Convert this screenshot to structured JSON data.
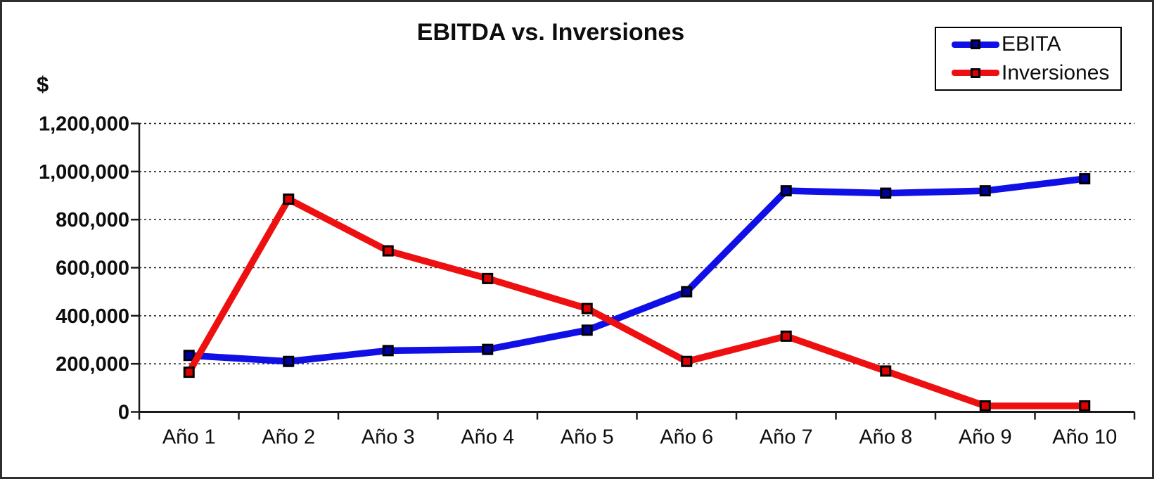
{
  "chart": {
    "title": "EBITDA vs. Inversiones",
    "y_axis_unit": "$"
  },
  "chart_data": {
    "type": "line",
    "title": "EBITDA vs. Inversiones",
    "ylabel": "$",
    "xlabel": "",
    "ylim": [
      0,
      1200000
    ],
    "ytick_step": 200000,
    "ytick_labels": [
      "0",
      "200,000",
      "400,000",
      "600,000",
      "800,000",
      "1,000,000",
      "1,200,000"
    ],
    "categories": [
      "Año 1",
      "Año 2",
      "Año 3",
      "Año 4",
      "Año 5",
      "Año 6",
      "Año 7",
      "Año 8",
      "Año 9",
      "Año 10"
    ],
    "series": [
      {
        "name": "EBITA",
        "color": "#0f0fe6",
        "marker_fill": "#000099",
        "values": [
          235000,
          210000,
          255000,
          260000,
          340000,
          500000,
          920000,
          910000,
          920000,
          970000
        ]
      },
      {
        "name": "Inversiones",
        "color": "#ee1010",
        "marker_fill": "#dd0000",
        "values": [
          165000,
          885000,
          670000,
          555000,
          430000,
          210000,
          315000,
          170000,
          25000,
          25000
        ]
      }
    ],
    "grid": "horizontal-dotted",
    "legend_position": "top-right",
    "marker_shape": "square"
  }
}
